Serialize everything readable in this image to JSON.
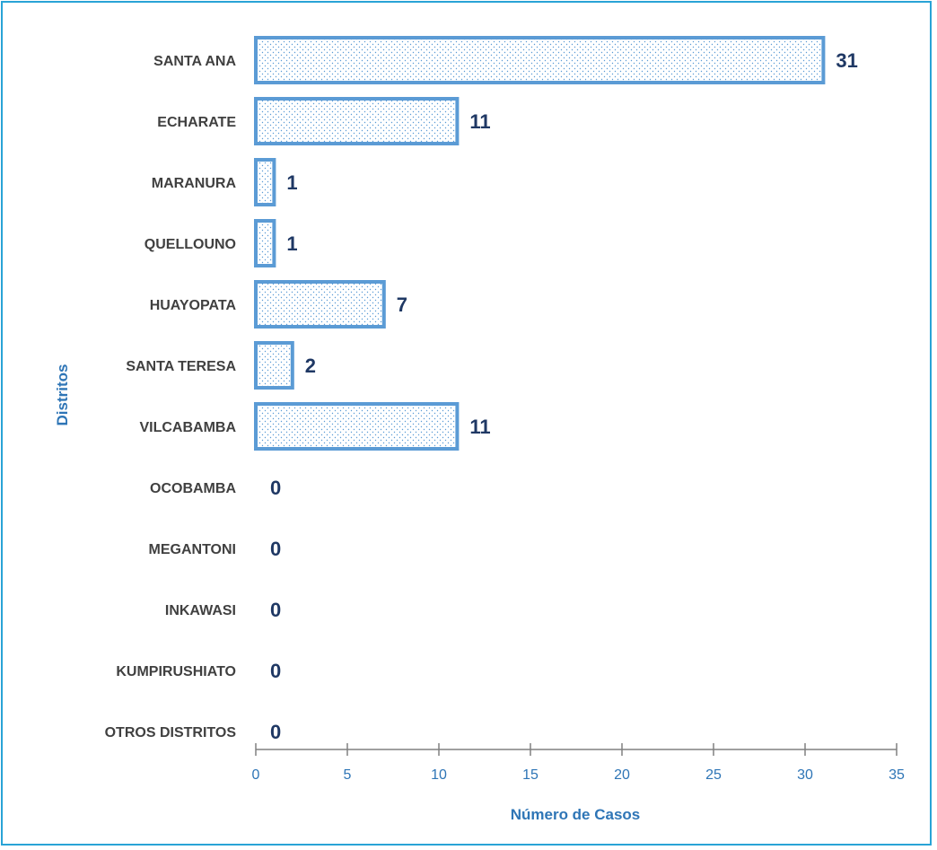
{
  "chart_data": {
    "type": "bar",
    "orientation": "horizontal",
    "categories": [
      "SANTA ANA",
      "ECHARATE",
      "MARANURA",
      "QUELLOUNO",
      "HUAYOPATA",
      "SANTA TERESA",
      "VILCABAMBA",
      "OCOBAMBA",
      "MEGANTONI",
      "INKAWASI",
      "KUMPIRUSHIATO",
      "OTROS DISTRITOS"
    ],
    "values": [
      31,
      11,
      1,
      1,
      7,
      2,
      11,
      0,
      0,
      0,
      0,
      0
    ],
    "xlabel": "Número de Casos",
    "ylabel": "Distritos",
    "xlim": [
      0,
      35
    ],
    "xticks": [
      0,
      5,
      10,
      15,
      20,
      25,
      30,
      35
    ],
    "grid": false,
    "colors": {
      "bar_border": "#5b9bd5",
      "bar_dots": "#5b9bd5",
      "value_label": "#1f3864",
      "axis_text": "#2e75b6",
      "frame": "#29a3d6"
    }
  }
}
